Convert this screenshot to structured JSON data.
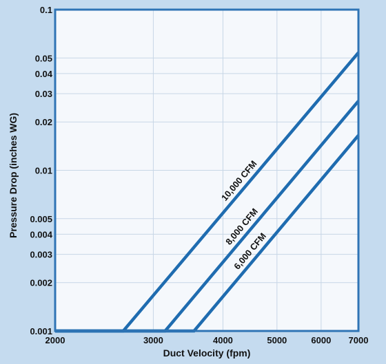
{
  "chart_data": {
    "type": "line",
    "xlabel": "Duct Velocity (fpm)",
    "ylabel": "Pressure Drop (inches WG)",
    "x_scale": "log",
    "y_scale": "log",
    "xlim": [
      2000,
      7000
    ],
    "ylim": [
      0.001,
      0.1
    ],
    "grid": true,
    "x_ticks": [
      2000,
      3000,
      4000,
      5000,
      6000,
      7000
    ],
    "x_tick_labels": [
      "2000",
      "3000",
      "4000",
      "5000",
      "6000",
      "7000"
    ],
    "y_ticks": [
      0.001,
      0.002,
      0.003,
      0.004,
      0.005,
      0.01,
      0.02,
      0.03,
      0.04,
      0.05,
      0.1
    ],
    "y_tick_labels": [
      "0.001",
      "0.002",
      "0.003",
      "0.004",
      "0.005",
      "0.01",
      "0.02",
      "0.03",
      "0.04",
      "0.05",
      "0.1"
    ],
    "series": [
      {
        "name": "10,000 CFM",
        "x": [
          2650,
          7000
        ],
        "y": [
          0.001,
          0.054
        ]
      },
      {
        "name": "8,000 CFM",
        "x": [
          3150,
          7000
        ],
        "y": [
          0.001,
          0.027
        ]
      },
      {
        "name": "6,000 CFM",
        "x": [
          3550,
          7000
        ],
        "y": [
          0.001,
          0.0165
        ]
      }
    ],
    "colors": {
      "line": "#1f6cb0",
      "frame": "#2f74b5",
      "plot_background": "#f5f8fc",
      "grid": "#c7d6e6",
      "page_background": "#c5dbef"
    }
  }
}
